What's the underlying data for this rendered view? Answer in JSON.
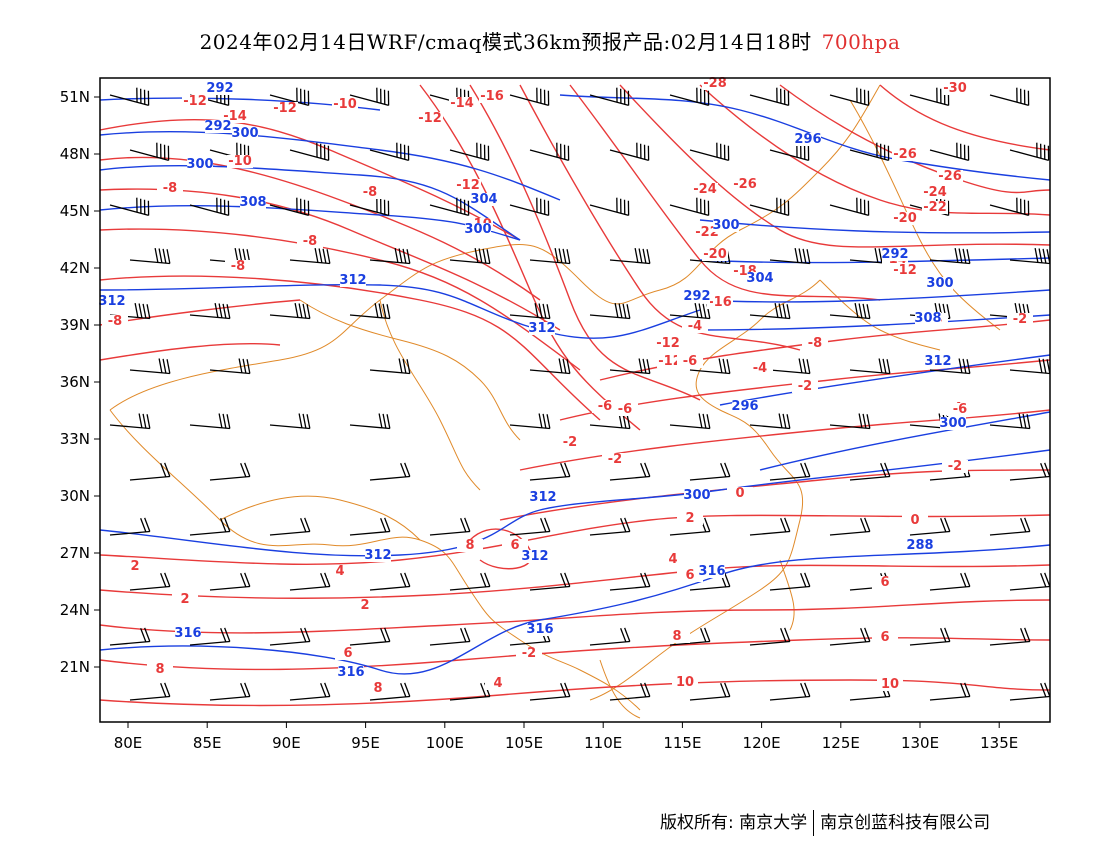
{
  "title": {
    "main": "2024年02月14日WRF/cmaq模式36km预报产品:02月14日18时",
    "level": "700hpa"
  },
  "axes": {
    "lon_ticks": [
      "80E",
      "85E",
      "90E",
      "95E",
      "100E",
      "105E",
      "110E",
      "115E",
      "120E",
      "125E",
      "130E",
      "135E"
    ],
    "lat_ticks": [
      "51N",
      "48N",
      "45N",
      "42N",
      "39N",
      "36N",
      "33N",
      "30N",
      "27N",
      "24N",
      "21N"
    ]
  },
  "height_labels": [
    "292",
    "292",
    "300",
    "300",
    "304",
    "300",
    "308",
    "312",
    "312",
    "312",
    "312",
    "312",
    "312",
    "316",
    "316",
    "316",
    "316",
    "288",
    "296",
    "300",
    "304",
    "308",
    "312",
    "296",
    "300"
  ],
  "temp_labels": [
    "-12",
    "-14",
    "-12",
    "-10",
    "-12",
    "-14",
    "-16",
    "-10",
    "-8",
    "-8",
    "-8",
    "-8",
    "-8",
    "-12",
    "-10",
    "-6",
    "-28",
    "-30",
    "-26",
    "-26",
    "-24",
    "-26",
    "-24",
    "-22",
    "-22",
    "-20",
    "-20",
    "-18",
    "-16",
    "-14",
    "-12",
    "-12",
    "-4",
    "-12",
    "-6",
    "-8",
    "-6",
    "-4",
    "-2",
    "-2",
    "-4",
    "-2",
    "-6",
    "-2",
    "0",
    "2",
    "0",
    "2",
    "4",
    "2",
    "2",
    "4",
    "6",
    "6",
    "8",
    "6",
    "8",
    "10",
    "8",
    "10",
    "6",
    "4",
    "-2",
    "-4",
    "8",
    "6",
    "-6",
    "-2"
  ],
  "colors": {
    "height": "#1a3fe0",
    "temp": "#e83a3a",
    "border": "#e08a2a",
    "wind": "#000000"
  },
  "footer": {
    "owner": "版权所有: 南京大学",
    "partner": "南京创蓝科技有限公司"
  }
}
